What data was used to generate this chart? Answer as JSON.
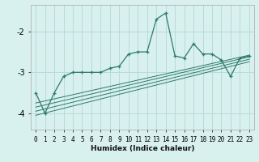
{
  "xlabel": "Humidex (Indice chaleur)",
  "x": [
    0,
    1,
    2,
    3,
    4,
    5,
    6,
    7,
    8,
    9,
    10,
    11,
    12,
    13,
    14,
    15,
    16,
    17,
    18,
    19,
    20,
    21,
    22,
    23
  ],
  "main_line": [
    -3.5,
    -4.0,
    -3.5,
    -3.1,
    -3.0,
    -3.0,
    -3.0,
    -3.0,
    -2.9,
    -2.85,
    -2.55,
    -2.5,
    -2.5,
    -1.7,
    -1.55,
    -2.6,
    -2.65,
    -2.3,
    -2.55,
    -2.55,
    -2.7,
    -3.1,
    -2.65,
    -2.6
  ],
  "trend_starts": [
    -3.75,
    -3.85,
    -3.95,
    -4.05
  ],
  "trend_ends": [
    -2.58,
    -2.62,
    -2.68,
    -2.74
  ],
  "background_color": "#d8f0ee",
  "grid_color": "#b8dcd8",
  "line_color": "#2d7a6b",
  "yticks": [
    -4,
    -3,
    -2
  ],
  "xticks": [
    0,
    1,
    2,
    3,
    4,
    5,
    6,
    7,
    8,
    9,
    10,
    11,
    12,
    13,
    14,
    15,
    16,
    17,
    18,
    19,
    20,
    21,
    22,
    23
  ],
  "ylim": [
    -4.4,
    -1.35
  ],
  "xlim": [
    -0.5,
    23.5
  ]
}
